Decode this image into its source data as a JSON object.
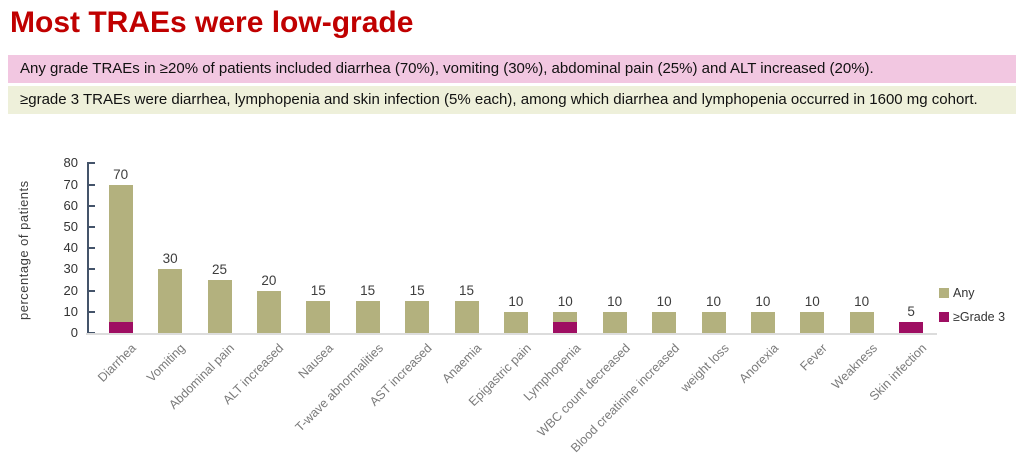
{
  "slide": {
    "title": "Most TRAEs were low-grade",
    "highlight_box_any_grade": "Any grade TRAEs in ≥20% of patients included diarrhea (70%), vomiting (30%), abdominal pain (25%) and ALT increased (20%).",
    "highlight_box_grade3": "≥grade 3 TRAEs were diarrhea, lymphopenia and skin infection (5% each), among which diarrhea and lymphopenia occurred in 1600 mg cohort."
  },
  "colors": {
    "title_red": "#C00000",
    "box_any_grade_bg": "#F2C7E1",
    "box_grade3_bg": "#EEF0DA",
    "any_bar": "#B3B17E",
    "grade3_bar": "#9E0E62",
    "axis": "#44546A",
    "baseline": "#DCDCDC"
  },
  "chart_data": {
    "type": "bar",
    "stacked": true,
    "title": "",
    "xlabel": "",
    "ylabel": "percentage of patients",
    "ylim": [
      0,
      80
    ],
    "yticks": [
      0,
      10,
      20,
      30,
      40,
      50,
      60,
      70,
      80
    ],
    "grid": false,
    "legend_position": "right",
    "categories": [
      "Diarrhea",
      "Vomiting",
      "Abdominal pain",
      "ALT increased",
      "Nausea",
      "T-wave abnormalities",
      "AST increased",
      "Anaemia",
      "Epigastric pain",
      "Lymphopenia",
      "WBC count decreased",
      "Blood creatinine increased",
      "weight loss",
      "Anorexia",
      "Fever",
      "Weakness",
      "Skin infection"
    ],
    "series": [
      {
        "name": "Any",
        "color": "#B3B17E",
        "values": [
          70,
          30,
          25,
          20,
          15,
          15,
          15,
          15,
          10,
          10,
          10,
          10,
          10,
          10,
          10,
          10,
          5
        ]
      },
      {
        "name": "≥Grade 3",
        "color": "#9E0E62",
        "values": [
          5,
          0,
          0,
          0,
          0,
          0,
          0,
          0,
          0,
          5,
          0,
          0,
          0,
          0,
          0,
          0,
          5
        ]
      }
    ],
    "data_labels": [
      70,
      30,
      25,
      20,
      15,
      15,
      15,
      15,
      10,
      10,
      10,
      10,
      10,
      10,
      10,
      10,
      5
    ]
  }
}
